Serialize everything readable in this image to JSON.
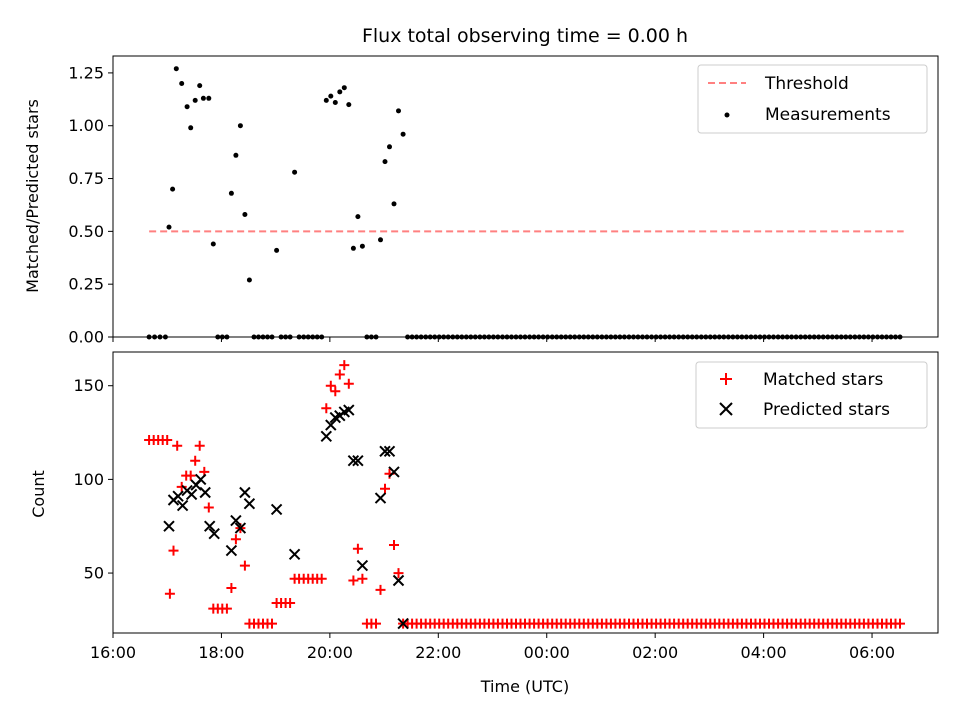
{
  "chart_data": [
    {
      "type": "scatter",
      "title": "Flux total observing time = 0.00 h",
      "xlabel": "",
      "ylabel": "Matched/Predicted stars",
      "ylim": [
        0,
        1.33
      ],
      "xlim": [
        "16:00",
        "07:13"
      ],
      "yticks": [
        "0.00",
        "0.25",
        "0.50",
        "0.75",
        "1.00",
        "1.25"
      ],
      "legend_position": "upper-right",
      "threshold": {
        "name": "Threshold",
        "value": 0.5,
        "x_start": "16:40",
        "x_end": "06:35",
        "color": "#ff8080"
      },
      "series": [
        {
          "name": "Measurements",
          "color": "#000000",
          "marker": "dot",
          "points": [
            [
              "16:40",
              0
            ],
            [
              "16:46",
              0
            ],
            [
              "16:52",
              0
            ],
            [
              "16:58",
              0
            ],
            [
              "17:02",
              0.52
            ],
            [
              "17:06",
              0.7
            ],
            [
              "17:10",
              1.27
            ],
            [
              "17:16",
              1.2
            ],
            [
              "17:22",
              1.09
            ],
            [
              "17:26",
              0.99
            ],
            [
              "17:31",
              1.12
            ],
            [
              "17:36",
              1.19
            ],
            [
              "17:40",
              1.13
            ],
            [
              "17:46",
              1.13
            ],
            [
              "17:51",
              0.44
            ],
            [
              "17:56",
              0
            ],
            [
              "18:01",
              0
            ],
            [
              "18:06",
              0
            ],
            [
              "18:11",
              0.68
            ],
            [
              "18:16",
              0.86
            ],
            [
              "18:21",
              1.0
            ],
            [
              "18:26",
              0.58
            ],
            [
              "18:31",
              0.27
            ],
            [
              "18:36",
              0
            ],
            [
              "18:41",
              0
            ],
            [
              "18:46",
              0
            ],
            [
              "18:51",
              0
            ],
            [
              "18:56",
              0
            ],
            [
              "19:01",
              0.41
            ],
            [
              "19:06",
              0
            ],
            [
              "19:11",
              0
            ],
            [
              "19:16",
              0
            ],
            [
              "19:21",
              0.78
            ],
            [
              "19:26",
              0
            ],
            [
              "19:31",
              0
            ],
            [
              "19:36",
              0
            ],
            [
              "19:41",
              0
            ],
            [
              "19:46",
              0
            ],
            [
              "19:51",
              0
            ],
            [
              "19:56",
              1.12
            ],
            [
              "20:01",
              1.14
            ],
            [
              "20:06",
              1.11
            ],
            [
              "20:11",
              1.16
            ],
            [
              "20:16",
              1.18
            ],
            [
              "20:21",
              1.1
            ],
            [
              "20:26",
              0.42
            ],
            [
              "20:31",
              0.57
            ],
            [
              "20:36",
              0.43
            ],
            [
              "20:41",
              0
            ],
            [
              "20:46",
              0
            ],
            [
              "20:51",
              0
            ],
            [
              "20:56",
              0.46
            ],
            [
              "21:01",
              0.83
            ],
            [
              "21:06",
              0.9
            ],
            [
              "21:11",
              0.63
            ],
            [
              "21:16",
              1.07
            ],
            [
              "21:21",
              0.96
            ]
          ],
          "zero_run": {
            "from": "21:26",
            "to": "06:35",
            "step_minutes": 5,
            "value": 0
          }
        }
      ]
    },
    {
      "type": "scatter",
      "title": "",
      "xlabel": "Time (UTC)",
      "ylabel": "Count",
      "ylim": [
        18,
        168
      ],
      "xlim": [
        "16:00",
        "07:13"
      ],
      "yticks": [
        "50",
        "100",
        "150"
      ],
      "xticks": [
        "16:00",
        "18:00",
        "20:00",
        "22:00",
        "00:00",
        "02:00",
        "04:00",
        "06:00"
      ],
      "legend_position": "upper-right",
      "series": [
        {
          "name": "Matched stars",
          "color": "#ff0000",
          "marker": "plus",
          "points": [
            [
              "16:40",
              121
            ],
            [
              "16:45",
              121
            ],
            [
              "16:50",
              121
            ],
            [
              "16:55",
              121
            ],
            [
              "17:00",
              121
            ],
            [
              "17:03",
              39
            ],
            [
              "17:07",
              62
            ],
            [
              "17:11",
              118
            ],
            [
              "17:16",
              96
            ],
            [
              "17:21",
              102
            ],
            [
              "17:26",
              102
            ],
            [
              "17:31",
              110
            ],
            [
              "17:36",
              118
            ],
            [
              "17:41",
              104
            ],
            [
              "17:46",
              85
            ],
            [
              "17:51",
              31
            ],
            [
              "17:56",
              31
            ],
            [
              "18:01",
              31
            ],
            [
              "18:06",
              31
            ],
            [
              "18:11",
              42
            ],
            [
              "18:16",
              68
            ],
            [
              "18:21",
              74
            ],
            [
              "18:26",
              54
            ],
            [
              "18:31",
              23
            ],
            [
              "18:36",
              23
            ],
            [
              "18:41",
              23
            ],
            [
              "18:46",
              23
            ],
            [
              "18:51",
              23
            ],
            [
              "18:56",
              23
            ],
            [
              "19:01",
              34
            ],
            [
              "19:06",
              34
            ],
            [
              "19:11",
              34
            ],
            [
              "19:16",
              34
            ],
            [
              "19:21",
              47
            ],
            [
              "19:26",
              47
            ],
            [
              "19:31",
              47
            ],
            [
              "19:36",
              47
            ],
            [
              "19:41",
              47
            ],
            [
              "19:46",
              47
            ],
            [
              "19:51",
              47
            ],
            [
              "19:56",
              138
            ],
            [
              "20:01",
              150
            ],
            [
              "20:06",
              147
            ],
            [
              "20:11",
              156
            ],
            [
              "20:16",
              161
            ],
            [
              "20:21",
              151
            ],
            [
              "20:26",
              46
            ],
            [
              "20:31",
              63
            ],
            [
              "20:36",
              47
            ],
            [
              "20:41",
              23
            ],
            [
              "20:46",
              23
            ],
            [
              "20:51",
              23
            ],
            [
              "20:56",
              41
            ],
            [
              "21:01",
              95
            ],
            [
              "21:06",
              103
            ],
            [
              "21:11",
              65
            ],
            [
              "21:16",
              50
            ],
            [
              "21:21",
              23
            ]
          ],
          "zero_run": {
            "from": "21:26",
            "to": "06:35",
            "step_minutes": 5,
            "value": 23
          }
        },
        {
          "name": "Predicted stars",
          "color": "#000000",
          "marker": "x",
          "points": [
            [
              "17:02",
              75
            ],
            [
              "17:07",
              89
            ],
            [
              "17:12",
              91
            ],
            [
              "17:17",
              86
            ],
            [
              "17:22",
              94
            ],
            [
              "17:27",
              92
            ],
            [
              "17:32",
              97
            ],
            [
              "17:37",
              100
            ],
            [
              "17:42",
              93
            ],
            [
              "17:47",
              75
            ],
            [
              "17:52",
              71
            ],
            [
              "18:11",
              62
            ],
            [
              "18:16",
              78
            ],
            [
              "18:21",
              74
            ],
            [
              "18:26",
              93
            ],
            [
              "18:31",
              87
            ],
            [
              "19:01",
              84
            ],
            [
              "19:21",
              60
            ],
            [
              "19:56",
              123
            ],
            [
              "20:01",
              129
            ],
            [
              "20:06",
              133
            ],
            [
              "20:11",
              134
            ],
            [
              "20:16",
              136
            ],
            [
              "20:21",
              137
            ],
            [
              "20:26",
              110
            ],
            [
              "20:31",
              110
            ],
            [
              "20:36",
              54
            ],
            [
              "20:56",
              90
            ],
            [
              "21:01",
              115
            ],
            [
              "21:06",
              115
            ],
            [
              "21:11",
              104
            ],
            [
              "21:16",
              46
            ],
            [
              "21:21",
              23
            ]
          ]
        }
      ]
    }
  ]
}
